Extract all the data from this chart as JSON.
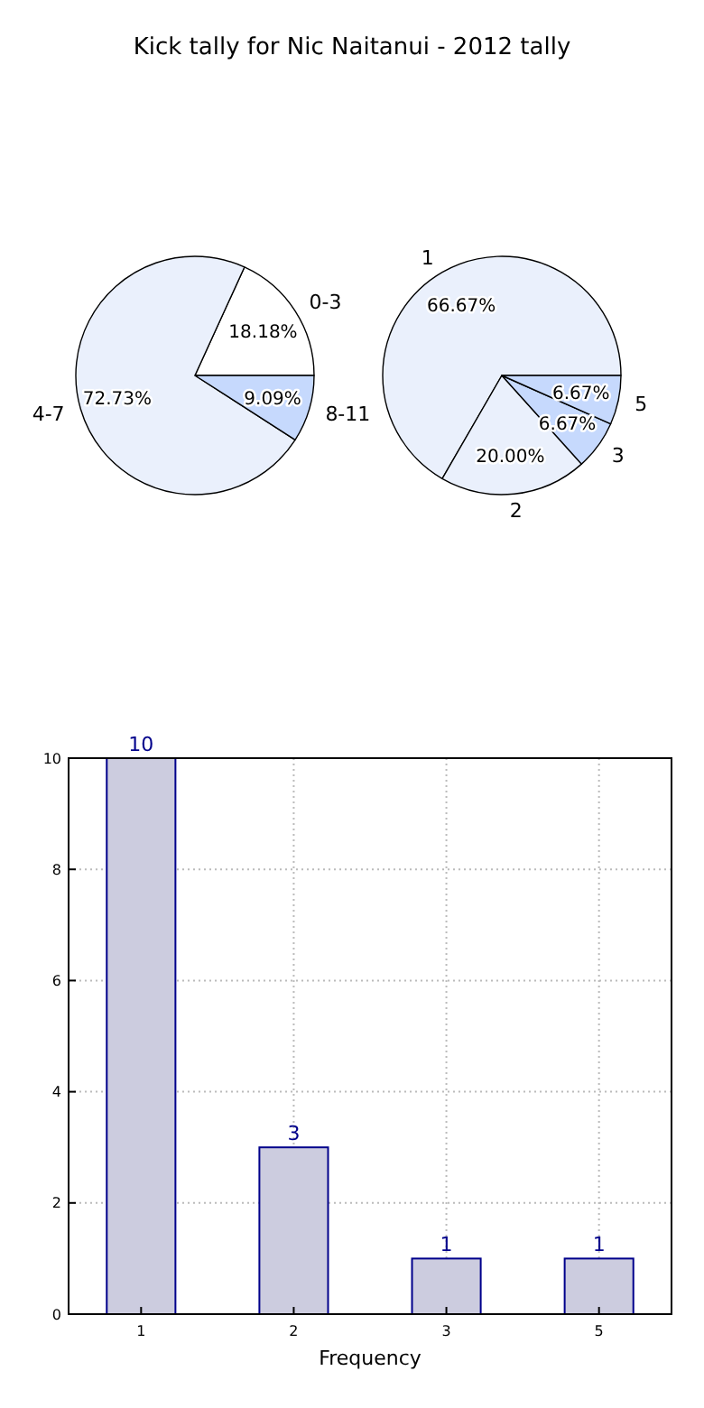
{
  "chart_data": [
    {
      "type": "pie",
      "title": "Kick tally for Nic Naitanui - 2012 tally",
      "categories": [
        "0-3",
        "4-7",
        "8-11"
      ],
      "values": [
        18.18,
        72.73,
        9.09
      ],
      "value_labels": [
        "18.18%",
        "72.73%",
        "9.09%"
      ],
      "colors": [
        "#ffffff",
        "#eaf0fc",
        "#c6d9fd"
      ]
    },
    {
      "type": "pie",
      "categories": [
        "1",
        "2",
        "3",
        "5"
      ],
      "values": [
        66.67,
        20.0,
        6.67,
        6.67
      ],
      "value_labels": [
        "66.67%",
        "20.00%",
        "6.67%",
        "6.67%"
      ],
      "colors": [
        "#eaf0fc",
        "#eaf0fc",
        "#c6d9fd",
        "#c6d9fd"
      ]
    },
    {
      "type": "bar",
      "categories": [
        "1",
        "2",
        "3",
        "5"
      ],
      "values": [
        10,
        3,
        1,
        1
      ],
      "color": "#ccccdf",
      "xlabel": "Frequency",
      "ylim": [
        0,
        10
      ],
      "yticks": [
        0,
        2,
        4,
        6,
        8,
        10
      ],
      "grid": true,
      "data_labels": true
    }
  ]
}
